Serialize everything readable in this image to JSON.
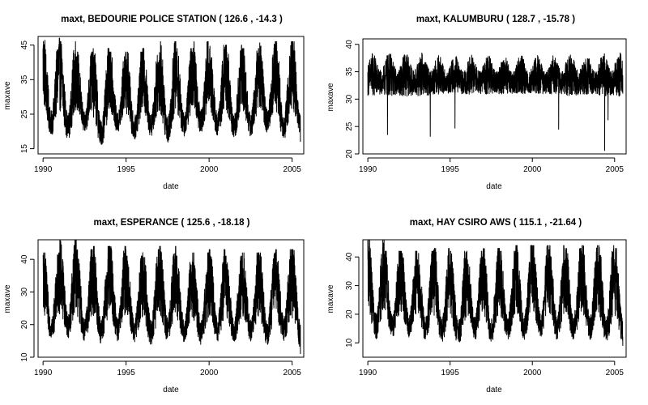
{
  "chart_data": [
    {
      "type": "line",
      "title": "maxt,  BEDOURIE POLICE STATION ( 126.6 ,  -14.3 )",
      "xlabel": "date",
      "ylabel": "maxave",
      "xlim": [
        1989.7,
        2005.7
      ],
      "ylim": [
        13.5,
        47.5
      ],
      "xticks": [
        1990,
        1995,
        2000,
        2005
      ],
      "yticks": [
        15,
        25,
        35,
        45
      ],
      "x_range": [
        1990.0,
        2005.5
      ],
      "seasonal_min": [
        17,
        16,
        18,
        14,
        18,
        16,
        17,
        15,
        17,
        18,
        17,
        16,
        17,
        18,
        16,
        17
      ],
      "seasonal_max": [
        47,
        46,
        43,
        44,
        43,
        43,
        44,
        46,
        44,
        46,
        45,
        45,
        44,
        46,
        46,
        46
      ],
      "end_value": 17,
      "grid": false,
      "legend": "none"
    },
    {
      "type": "line",
      "title": "maxt,  KALUMBURU ( 128.7 ,  -15.78 )",
      "xlabel": "date",
      "ylabel": "maxave",
      "xlim": [
        1989.7,
        2005.7
      ],
      "ylim": [
        20,
        41
      ],
      "xticks": [
        1990,
        1995,
        2000,
        2005
      ],
      "yticks": [
        20,
        25,
        30,
        35,
        40
      ],
      "x_range": [
        1990.0,
        2005.5
      ],
      "base_low": [
        29,
        29,
        30,
        30,
        30,
        30,
        30,
        30,
        30,
        30,
        30,
        30,
        30,
        30,
        30,
        30
      ],
      "seasonal_max": [
        39,
        39,
        40,
        40,
        39,
        39,
        39,
        39,
        39,
        39,
        39,
        39,
        40,
        39,
        40,
        40
      ],
      "spikes": [
        [
          1991.2,
          23.5
        ],
        [
          1993.8,
          23.2
        ],
        [
          1995.3,
          24.7
        ],
        [
          2001.6,
          24.5
        ],
        [
          2004.4,
          20.6
        ],
        [
          2004.6,
          26.2
        ]
      ],
      "end_value": 31,
      "grid": false,
      "legend": "none"
    },
    {
      "type": "line",
      "title": "maxt,  ESPERANCE ( 125.6 ,  -18.18 )",
      "xlabel": "date",
      "ylabel": "maxave",
      "xlim": [
        1989.7,
        2005.7
      ],
      "ylim": [
        10,
        46
      ],
      "xticks": [
        1990,
        1995,
        2000,
        2005
      ],
      "yticks": [
        10,
        20,
        30,
        40
      ],
      "x_range": [
        1990.0,
        2005.5
      ],
      "seasonal_min": [
        14,
        14,
        13,
        12,
        13,
        13,
        12,
        13,
        13,
        12,
        13,
        13,
        13,
        12,
        13,
        11
      ],
      "seasonal_max": [
        42,
        46,
        43,
        44,
        44,
        41,
        43,
        44,
        41,
        42,
        43,
        41,
        42,
        42,
        43,
        43
      ],
      "end_value": 11,
      "grid": false,
      "legend": "none"
    },
    {
      "type": "line",
      "title": "maxt,  HAY CSIRO AWS ( 115.1 ,  -21.64 )",
      "xlabel": "date",
      "ylabel": "maxave",
      "xlim": [
        1989.7,
        2005.7
      ],
      "ylim": [
        5,
        46
      ],
      "xticks": [
        1990,
        1995,
        2000,
        2005
      ],
      "yticks": [
        10,
        20,
        30,
        40
      ],
      "x_range": [
        1990.0,
        2005.5
      ],
      "seasonal_min": [
        9,
        10,
        10,
        9,
        8,
        7,
        9,
        8,
        9,
        9,
        10,
        9,
        9,
        9,
        8,
        8
      ],
      "seasonal_max": [
        46,
        42,
        42,
        42,
        43,
        42,
        42,
        43,
        42,
        44,
        44,
        44,
        43,
        44,
        44,
        43
      ],
      "end_value": 9,
      "grid": false,
      "legend": "none"
    }
  ]
}
